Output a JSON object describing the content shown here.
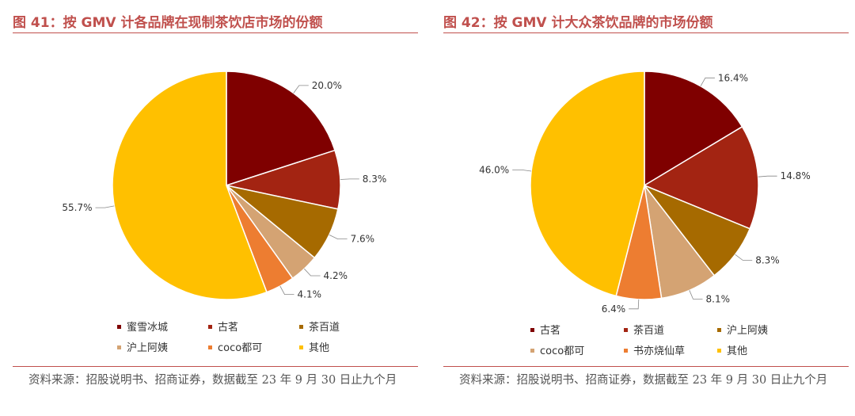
{
  "left": {
    "title": "图 41：按 GMV 计各品牌在现制茶饮店市场的份额",
    "source": "资料来源：招股说明书、招商证券，数据截至 23 年 9 月 30 日止九个月",
    "chart_data": {
      "type": "pie",
      "legend_position": "bottom",
      "slices": [
        {
          "name": "蜜雪冰城",
          "value": 20.0,
          "label": "20.0%",
          "color": "#7f0000"
        },
        {
          "name": "古茗",
          "value": 8.3,
          "label": "8.3%",
          "color": "#a32412"
        },
        {
          "name": "茶百道",
          "value": 7.6,
          "label": "7.6%",
          "color": "#a66a00"
        },
        {
          "name": "沪上阿姨",
          "value": 4.2,
          "label": "4.2%",
          "color": "#d4a373"
        },
        {
          "name": "coco都可",
          "value": 4.1,
          "label": "4.1%",
          "color": "#ed7d31"
        },
        {
          "name": "其他",
          "value": 55.7,
          "label": "55.7%",
          "color": "#ffc000"
        }
      ]
    }
  },
  "right": {
    "title": "图 42：按 GMV 计大众茶饮品牌的市场份额",
    "source": "资料来源：招股说明书、招商证券，数据截至 23 年 9 月 30 日止九个月",
    "chart_data": {
      "type": "pie",
      "legend_position": "bottom",
      "slices": [
        {
          "name": "古茗",
          "value": 16.4,
          "label": "16.4%",
          "color": "#7f0000"
        },
        {
          "name": "茶百道",
          "value": 14.8,
          "label": "14.8%",
          "color": "#a32412"
        },
        {
          "name": "沪上阿姨",
          "value": 8.3,
          "label": "8.3%",
          "color": "#a66a00"
        },
        {
          "name": "coco都可",
          "value": 8.1,
          "label": "8.1%",
          "color": "#d4a373"
        },
        {
          "name": "书亦烧仙草",
          "value": 6.4,
          "label": "6.4%",
          "color": "#ed7d31"
        },
        {
          "name": "其他",
          "value": 46.0,
          "label": "46.0%",
          "color": "#ffc000"
        }
      ]
    }
  }
}
